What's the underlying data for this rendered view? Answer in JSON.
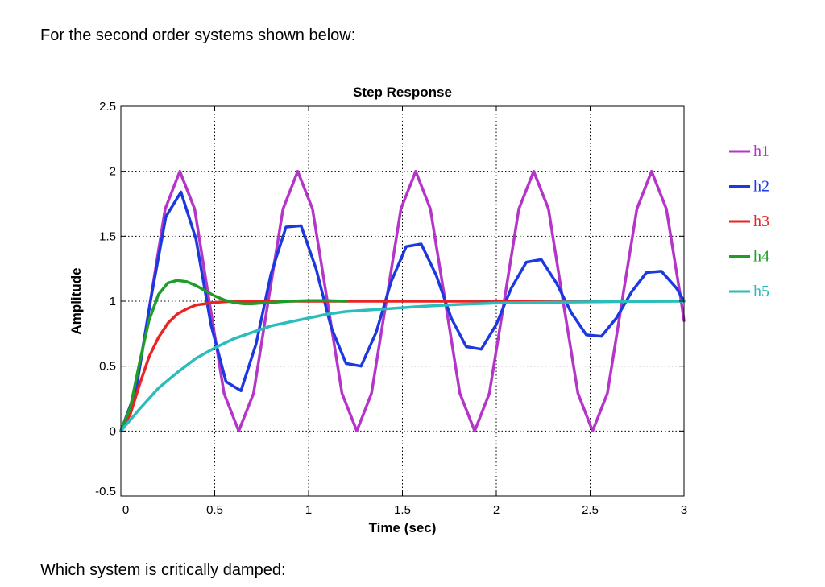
{
  "intro_text": "For the second order systems shown below:",
  "question_text": "Which system is critically damped:",
  "chart_data": {
    "type": "line",
    "title": "Step Response",
    "xlabel": "Time (sec)",
    "ylabel": "Amplitude",
    "xlim": [
      0,
      3
    ],
    "ylim": [
      -0.5,
      2.5
    ],
    "xticks": [
      0,
      0.5,
      1,
      1.5,
      2,
      2.5,
      3
    ],
    "xtick_labels": [
      "0",
      "0.5",
      "1",
      "1.5",
      "2",
      "2.5",
      "3"
    ],
    "yticks": [
      -0.5,
      0,
      0.5,
      1,
      1.5,
      2,
      2.5
    ],
    "ytick_labels": [
      "-0.5",
      "0",
      "0.5",
      "1",
      "1.5",
      "2",
      "2.5"
    ],
    "grid": true,
    "legend_position": "right",
    "series": [
      {
        "name": "h1",
        "color": "#b435c8",
        "x": [
          0,
          0.078,
          0.157,
          0.236,
          0.314,
          0.393,
          0.471,
          0.55,
          0.628,
          0.707,
          0.785,
          0.864,
          0.942,
          1.021,
          1.1,
          1.178,
          1.257,
          1.335,
          1.414,
          1.492,
          1.571,
          1.649,
          1.728,
          1.806,
          1.885,
          1.963,
          2.042,
          2.12,
          2.199,
          2.278,
          2.356,
          2.435,
          2.513,
          2.592,
          2.67,
          2.749,
          2.827,
          2.906,
          2.985,
          3.0
        ],
        "y": [
          0,
          0.29,
          1.0,
          1.71,
          2.0,
          1.71,
          1.0,
          0.29,
          0,
          0.29,
          1.0,
          1.71,
          2.0,
          1.71,
          1.0,
          0.29,
          0,
          0.29,
          1.0,
          1.71,
          2.0,
          1.71,
          1.0,
          0.29,
          0,
          0.29,
          1.0,
          1.71,
          2.0,
          1.71,
          1.0,
          0.29,
          0,
          0.29,
          1.0,
          1.71,
          2.0,
          1.71,
          1.0,
          0.85
        ]
      },
      {
        "name": "h2",
        "color": "#1c39e0",
        "x": [
          0,
          0.08,
          0.16,
          0.24,
          0.32,
          0.4,
          0.48,
          0.56,
          0.64,
          0.72,
          0.8,
          0.88,
          0.96,
          1.04,
          1.12,
          1.2,
          1.28,
          1.36,
          1.44,
          1.52,
          1.6,
          1.68,
          1.76,
          1.84,
          1.92,
          2.0,
          2.08,
          2.16,
          2.24,
          2.32,
          2.4,
          2.48,
          2.56,
          2.64,
          2.72,
          2.8,
          2.88,
          2.96,
          3.0
        ],
        "y": [
          0,
          0.31,
          1.02,
          1.65,
          1.84,
          1.48,
          0.82,
          0.38,
          0.31,
          0.67,
          1.21,
          1.57,
          1.58,
          1.25,
          0.8,
          0.52,
          0.5,
          0.76,
          1.15,
          1.42,
          1.44,
          1.2,
          0.87,
          0.65,
          0.63,
          0.82,
          1.1,
          1.3,
          1.32,
          1.14,
          0.91,
          0.74,
          0.73,
          0.87,
          1.07,
          1.22,
          1.23,
          1.1,
          1.0
        ]
      },
      {
        "name": "h3",
        "color": "#e82424",
        "x": [
          0,
          0.05,
          0.1,
          0.15,
          0.2,
          0.25,
          0.3,
          0.35,
          0.4,
          0.45,
          0.5,
          0.55,
          0.6,
          0.7,
          0.8,
          0.9,
          1.0,
          1.2,
          1.5,
          2.0,
          2.5,
          3.0
        ],
        "y": [
          0,
          0.13,
          0.36,
          0.57,
          0.72,
          0.83,
          0.9,
          0.94,
          0.97,
          0.98,
          0.99,
          0.995,
          0.998,
          1.0,
          1.0,
          1.0,
          1.0,
          1.0,
          1.0,
          1.0,
          1.0,
          1.0
        ],
        "x_note": "clip at 2.72"
      },
      {
        "name": "h4",
        "color": "#1f9d2b",
        "x": [
          0,
          0.05,
          0.1,
          0.15,
          0.2,
          0.25,
          0.3,
          0.35,
          0.4,
          0.45,
          0.5,
          0.55,
          0.6,
          0.65,
          0.7,
          0.75,
          0.8,
          0.9,
          1.0,
          1.1,
          1.2
        ],
        "y": [
          0,
          0.18,
          0.53,
          0.85,
          1.05,
          1.14,
          1.16,
          1.15,
          1.12,
          1.08,
          1.04,
          1.01,
          0.99,
          0.98,
          0.98,
          0.985,
          0.99,
          1.0,
          1.005,
          1.005,
          1.0
        ]
      },
      {
        "name": "h5",
        "color": "#2bbcbc",
        "x": [
          0,
          0.1,
          0.2,
          0.3,
          0.4,
          0.5,
          0.6,
          0.7,
          0.8,
          0.9,
          1.0,
          1.1,
          1.2,
          1.4,
          1.6,
          1.8,
          2.0,
          2.2,
          2.4,
          2.6,
          2.8,
          3.0
        ],
        "y": [
          0,
          0.17,
          0.33,
          0.45,
          0.56,
          0.64,
          0.71,
          0.76,
          0.81,
          0.84,
          0.87,
          0.9,
          0.92,
          0.94,
          0.96,
          0.975,
          0.985,
          0.99,
          0.993,
          0.996,
          0.998,
          1.0
        ]
      }
    ]
  }
}
